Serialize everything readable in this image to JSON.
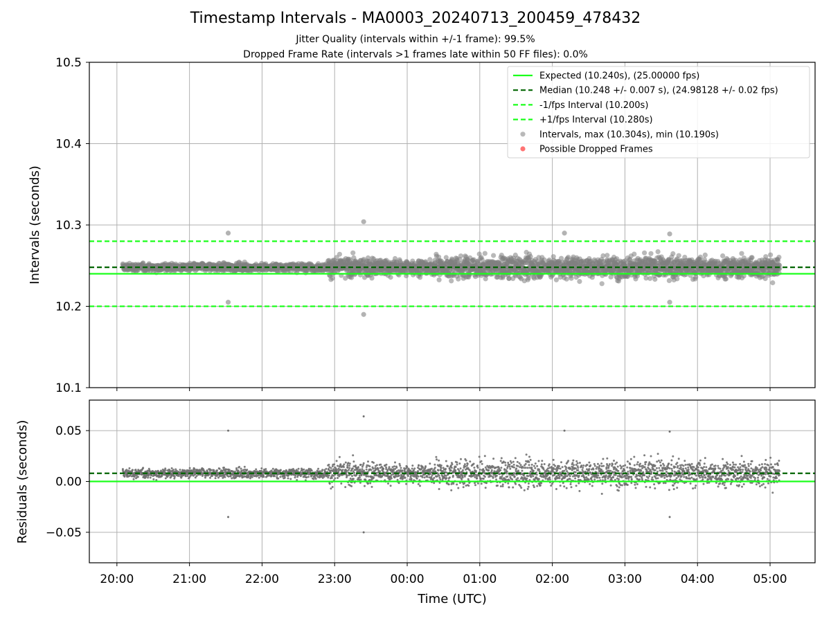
{
  "chart_data": [
    {
      "type": "scatter",
      "title": "Timestamp Intervals - MA0003_20240713_200459_478432",
      "subtitle_lines": [
        "Jitter Quality (intervals within +/-1 frame): 99.5%",
        "Dropped Frame Rate (intervals >1 frames late within 50 FF files): 0.0%"
      ],
      "ylabel": "Intervals (seconds)",
      "ylim": [
        10.1,
        10.5
      ],
      "yticks": [
        10.1,
        10.2,
        10.3,
        10.4,
        10.5
      ],
      "ytick_labels": [
        "10.1",
        "10.2",
        "10.3",
        "10.4",
        "10.5"
      ],
      "xlim_hours": [
        19.62,
        29.62
      ],
      "grid": true,
      "legend_placement": "top-right",
      "lines": [
        {
          "name": "Expected (10.240s), (25.00000 fps)",
          "y": 10.24,
          "color": "#1aff1a",
          "style": "solid"
        },
        {
          "name": "Median (10.248 +/- 0.007 s), (24.98128 +/- 0.02 fps)",
          "y": 10.248,
          "color": "#006400",
          "style": "dashed"
        },
        {
          "name": "-1/fps Interval (10.200s)",
          "y": 10.2,
          "color": "#1aff1a",
          "style": "dashed"
        },
        {
          "name": "+1/fps Interval (10.280s)",
          "y": 10.28,
          "color": "#1aff1a",
          "style": "dashed"
        }
      ],
      "scatter_series": [
        {
          "name": "Intervals, max (10.304s), min (10.190s)",
          "color": "#808080",
          "max": 10.304,
          "min": 10.19,
          "count": 3220
        },
        {
          "name": "Possible Dropped Frames",
          "color": "#ff0000",
          "count": 0
        }
      ],
      "notable_points": [
        {
          "x_time": "23:24",
          "y": 10.304
        },
        {
          "x_time": "23:24",
          "y": 10.19
        },
        {
          "x_time": "21:32",
          "y": 10.29
        },
        {
          "x_time": "21:32",
          "y": 10.205
        },
        {
          "x_time": "02:10",
          "y": 10.29
        },
        {
          "x_time": "03:37",
          "y": 10.289
        },
        {
          "x_time": "03:37",
          "y": 10.205
        }
      ]
    },
    {
      "type": "scatter",
      "xlabel": "Time (UTC)",
      "ylabel": "Residuals (seconds)",
      "ylim": [
        -0.08,
        0.08
      ],
      "yticks": [
        -0.05,
        0.0,
        0.05
      ],
      "ytick_labels": [
        "−0.05",
        "0.00",
        "0.05"
      ],
      "xticks_hours": [
        20,
        21,
        22,
        23,
        24,
        25,
        26,
        27,
        28,
        29
      ],
      "xtick_labels": [
        "20:00",
        "21:00",
        "22:00",
        "23:00",
        "00:00",
        "01:00",
        "02:00",
        "03:00",
        "04:00",
        "05:00"
      ],
      "xlim_hours": [
        19.62,
        29.62
      ],
      "grid": true,
      "lines": [
        {
          "y": 0.0,
          "color": "#1aff1a",
          "style": "solid"
        },
        {
          "y": 0.008,
          "color": "#006400",
          "style": "dashed"
        }
      ],
      "scatter_series": [
        {
          "color": "#707070",
          "max": 0.064,
          "min": -0.05,
          "count": 3220
        }
      ]
    }
  ]
}
